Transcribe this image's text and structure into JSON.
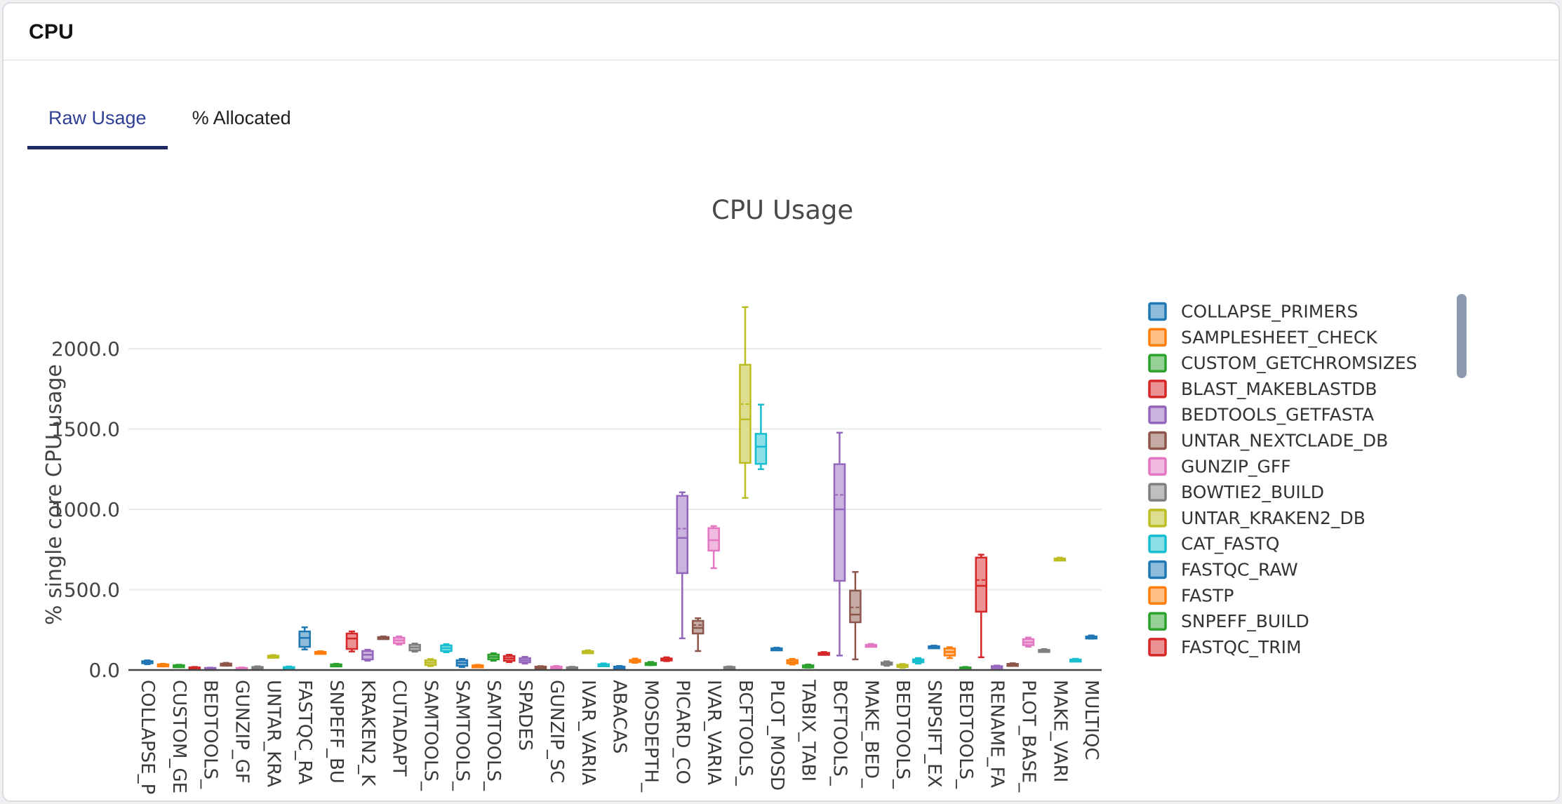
{
  "header": {
    "title": "CPU"
  },
  "tabs": [
    {
      "label": "Raw Usage",
      "active": true
    },
    {
      "label": "% Allocated",
      "active": false
    }
  ],
  "colors": {
    "active_tab_text": "#2e3f94",
    "tab_underline": "#1f2a66",
    "axis_text": "#444444",
    "axis_line": "#444444",
    "grid": "#ebebeb",
    "scrollbar": "#8d99ae",
    "card_border": "#d9dce1"
  },
  "chart_data": {
    "type": "box",
    "title": "CPU Usage",
    "xlabel": "",
    "ylabel": "% single core CPU usage",
    "ytick_values": [
      0,
      500,
      1000,
      1500,
      2000
    ],
    "ytick_labels": [
      "0.0",
      "500.0",
      "1000.0",
      "1500.0",
      "2000.0"
    ],
    "ylim": [
      0,
      2320
    ],
    "grid": true,
    "legend_position": "right",
    "legend_scrollable": true,
    "palette": [
      "#1f77b4",
      "#ff7f0e",
      "#2ca02c",
      "#d62728",
      "#9467bd",
      "#8c564b",
      "#e377c2",
      "#7f7f7f",
      "#bcbd22",
      "#17becf"
    ],
    "legend": [
      {
        "label": "COLLAPSE_PRIMERS",
        "color_index": 0
      },
      {
        "label": "SAMPLESHEET_CHECK",
        "color_index": 1
      },
      {
        "label": "CUSTOM_GETCHROMSIZES",
        "color_index": 2
      },
      {
        "label": "BLAST_MAKEBLASTDB",
        "color_index": 3
      },
      {
        "label": "BEDTOOLS_GETFASTA",
        "color_index": 4
      },
      {
        "label": "UNTAR_NEXTCLADE_DB",
        "color_index": 5
      },
      {
        "label": "GUNZIP_GFF",
        "color_index": 6
      },
      {
        "label": "BOWTIE2_BUILD",
        "color_index": 7
      },
      {
        "label": "UNTAR_KRAKEN2_DB",
        "color_index": 8
      },
      {
        "label": "CAT_FASTQ",
        "color_index": 9
      },
      {
        "label": "FASTQC_RAW",
        "color_index": 0
      },
      {
        "label": "FASTP",
        "color_index": 1
      },
      {
        "label": "SNPEFF_BUILD",
        "color_index": 2
      },
      {
        "label": "FASTQC_TRIM",
        "color_index": 3
      }
    ],
    "xtick_labels": [
      "COLLAPSE_P",
      "CUSTOM_GE",
      "BEDTOOLS_",
      "GUNZIP_GF",
      "UNTAR_KRA",
      "FASTQC_RA",
      "SNPEFF_BU",
      "KRAKEN2_K",
      "CUTADAPT",
      "SAMTOOLS_",
      "SAMTOOLS_",
      "SAMTOOLS_",
      "SPADES",
      "GUNZIP_SC",
      "IVAR_VARIA",
      "ABACAS",
      "MOSDEPTH_",
      "PICARD_CO",
      "IVAR_VARIA",
      "BCFTOOLS_",
      "PLOT_MOSD",
      "TABIX_TABI",
      "BCFTOOLS_",
      "MAKE_BED_",
      "BEDTOOLS_",
      "SNPSIFT_EX",
      "BEDTOOLS_",
      "RENAME_FA",
      "PLOT_BASE_",
      "MAKE_VARI",
      "MULTIQC"
    ],
    "boxes": [
      {
        "i": 1,
        "color_index": 0,
        "lo": 36,
        "q1": 42,
        "med": 48,
        "q3": 55,
        "hi": 60
      },
      {
        "i": 2,
        "color_index": 1,
        "lo": 24,
        "q1": 28,
        "med": 31,
        "q3": 35,
        "hi": 39
      },
      {
        "i": 3,
        "color_index": 2,
        "lo": 19,
        "q1": 23,
        "med": 26,
        "q3": 30,
        "hi": 33
      },
      {
        "i": 4,
        "color_index": 3,
        "lo": 7,
        "q1": 10,
        "med": 13,
        "q3": 16,
        "hi": 19
      },
      {
        "i": 5,
        "color_index": 4,
        "lo": 5,
        "q1": 8,
        "med": 10,
        "q3": 13,
        "hi": 15
      },
      {
        "i": 6,
        "color_index": 5,
        "lo": 27,
        "q1": 32,
        "med": 36,
        "q3": 40,
        "hi": 44
      },
      {
        "i": 7,
        "color_index": 6,
        "lo": 6,
        "q1": 8,
        "med": 11,
        "q3": 13,
        "hi": 16
      },
      {
        "i": 8,
        "color_index": 7,
        "lo": 9,
        "q1": 13,
        "med": 16,
        "q3": 19,
        "hi": 23
      },
      {
        "i": 9,
        "color_index": 8,
        "lo": 79,
        "q1": 83,
        "med": 86,
        "q3": 89,
        "hi": 93
      },
      {
        "i": 10,
        "color_index": 9,
        "lo": 8,
        "q1": 12,
        "med": 15,
        "q3": 18,
        "hi": 22
      },
      {
        "i": 11,
        "color_index": 0,
        "lo": 128,
        "q1": 144,
        "med": 200,
        "q3": 240,
        "hi": 266
      },
      {
        "i": 12,
        "color_index": 1,
        "lo": 103,
        "q1": 107,
        "med": 110,
        "q3": 113,
        "hi": 117
      },
      {
        "i": 13,
        "color_index": 2,
        "lo": 25,
        "q1": 29,
        "med": 32,
        "q3": 35,
        "hi": 39
      },
      {
        "i": 14,
        "color_index": 3,
        "lo": 115,
        "q1": 131,
        "med": 196,
        "q3": 227,
        "hi": 240
      },
      {
        "i": 15,
        "color_index": 4,
        "lo": 58,
        "q1": 66,
        "med": 95,
        "q3": 118,
        "hi": 126
      },
      {
        "i": 16,
        "color_index": 5,
        "lo": 195,
        "q1": 199,
        "med": 202,
        "q3": 205,
        "hi": 209
      },
      {
        "i": 17,
        "color_index": 6,
        "lo": 158,
        "q1": 166,
        "med": 184,
        "q3": 201,
        "hi": 209
      },
      {
        "i": 18,
        "color_index": 7,
        "lo": 114,
        "q1": 122,
        "med": 140,
        "q3": 157,
        "hi": 165
      },
      {
        "i": 19,
        "color_index": 8,
        "lo": 24,
        "q1": 31,
        "med": 46,
        "q3": 61,
        "hi": 68
      },
      {
        "i": 20,
        "color_index": 9,
        "lo": 110,
        "q1": 118,
        "med": 136,
        "q3": 153,
        "hi": 161
      },
      {
        "i": 21,
        "color_index": 0,
        "lo": 18,
        "q1": 26,
        "med": 44,
        "q3": 61,
        "hi": 69
      },
      {
        "i": 22,
        "color_index": 1,
        "lo": 21,
        "q1": 24,
        "med": 26,
        "q3": 29,
        "hi": 32
      },
      {
        "i": 23,
        "color_index": 2,
        "lo": 58,
        "q1": 66,
        "med": 81,
        "q3": 96,
        "hi": 104
      },
      {
        "i": 24,
        "color_index": 3,
        "lo": 49,
        "q1": 57,
        "med": 72,
        "q3": 87,
        "hi": 95
      },
      {
        "i": 25,
        "color_index": 4,
        "lo": 40,
        "q1": 48,
        "med": 61,
        "q3": 74,
        "hi": 82
      },
      {
        "i": 26,
        "color_index": 5,
        "lo": 13,
        "q1": 16,
        "med": 18,
        "q3": 21,
        "hi": 24
      },
      {
        "i": 27,
        "color_index": 6,
        "lo": 11,
        "q1": 15,
        "med": 18,
        "q3": 21,
        "hi": 25
      },
      {
        "i": 28,
        "color_index": 7,
        "lo": 9,
        "q1": 12,
        "med": 14,
        "q3": 17,
        "hi": 20
      },
      {
        "i": 29,
        "color_index": 8,
        "lo": 106,
        "q1": 111,
        "med": 114,
        "q3": 117,
        "hi": 122
      },
      {
        "i": 30,
        "color_index": 9,
        "lo": 23,
        "q1": 28,
        "med": 32,
        "q3": 36,
        "hi": 41
      },
      {
        "i": 31,
        "color_index": 0,
        "lo": 11,
        "q1": 15,
        "med": 18,
        "q3": 21,
        "hi": 25
      },
      {
        "i": 32,
        "color_index": 1,
        "lo": 45,
        "q1": 53,
        "med": 58,
        "q3": 63,
        "hi": 71
      },
      {
        "i": 33,
        "color_index": 2,
        "lo": 30,
        "q1": 36,
        "med": 40,
        "q3": 44,
        "hi": 50
      },
      {
        "i": 34,
        "color_index": 3,
        "lo": 55,
        "q1": 62,
        "med": 67,
        "q3": 72,
        "hi": 79
      },
      {
        "i": 35,
        "color_index": 4,
        "lo": 197,
        "q1": 603,
        "med": 822,
        "q3": 1084,
        "hi": 1106,
        "mean": 880
      },
      {
        "i": 36,
        "color_index": 5,
        "lo": 118,
        "q1": 227,
        "med": 262,
        "q3": 306,
        "hi": 322,
        "mean": 280
      },
      {
        "i": 37,
        "color_index": 6,
        "lo": 634,
        "q1": 743,
        "med": 808,
        "q3": 883,
        "hi": 896
      },
      {
        "i": 38,
        "color_index": 7,
        "lo": 12,
        "q1": 15,
        "med": 17,
        "q3": 19,
        "hi": 22
      },
      {
        "i": 39,
        "color_index": 8,
        "lo": 1071,
        "q1": 1289,
        "med": 1560,
        "q3": 1900,
        "hi": 2259,
        "mean": 1655
      },
      {
        "i": 40,
        "color_index": 9,
        "lo": 1250,
        "q1": 1283,
        "med": 1390,
        "q3": 1470,
        "hi": 1652
      },
      {
        "i": 41,
        "color_index": 0,
        "lo": 126,
        "q1": 130,
        "med": 132,
        "q3": 135,
        "hi": 139
      },
      {
        "i": 42,
        "color_index": 1,
        "lo": 34,
        "q1": 41,
        "med": 50,
        "q3": 62,
        "hi": 69
      },
      {
        "i": 43,
        "color_index": 2,
        "lo": 14,
        "q1": 18,
        "med": 23,
        "q3": 29,
        "hi": 34
      },
      {
        "i": 44,
        "color_index": 3,
        "lo": 96,
        "q1": 101,
        "med": 104,
        "q3": 107,
        "hi": 112
      },
      {
        "i": 45,
        "color_index": 4,
        "lo": 90,
        "q1": 555,
        "med": 1000,
        "q3": 1281,
        "hi": 1477,
        "mean": 1090
      },
      {
        "i": 46,
        "color_index": 5,
        "lo": 66,
        "q1": 297,
        "med": 345,
        "q3": 494,
        "hi": 610,
        "mean": 390
      },
      {
        "i": 47,
        "color_index": 6,
        "lo": 146,
        "q1": 151,
        "med": 154,
        "q3": 157,
        "hi": 162
      },
      {
        "i": 48,
        "color_index": 7,
        "lo": 26,
        "q1": 33,
        "med": 40,
        "q3": 47,
        "hi": 54
      },
      {
        "i": 49,
        "color_index": 8,
        "lo": 15,
        "q1": 20,
        "med": 26,
        "q3": 32,
        "hi": 37
      },
      {
        "i": 50,
        "color_index": 9,
        "lo": 40,
        "q1": 48,
        "med": 57,
        "q3": 66,
        "hi": 74
      },
      {
        "i": 51,
        "color_index": 0,
        "lo": 138,
        "q1": 142,
        "med": 145,
        "q3": 148,
        "hi": 152
      },
      {
        "i": 52,
        "color_index": 1,
        "lo": 74,
        "q1": 90,
        "med": 112,
        "q3": 134,
        "hi": 142
      },
      {
        "i": 53,
        "color_index": 2,
        "lo": 9,
        "q1": 12,
        "med": 14,
        "q3": 16,
        "hi": 19
      },
      {
        "i": 54,
        "color_index": 3,
        "lo": 79,
        "q1": 363,
        "med": 524,
        "q3": 700,
        "hi": 718,
        "mean": 560
      },
      {
        "i": 55,
        "color_index": 4,
        "lo": 16,
        "q1": 20,
        "med": 22,
        "q3": 24,
        "hi": 28
      },
      {
        "i": 56,
        "color_index": 5,
        "lo": 28,
        "q1": 32,
        "med": 35,
        "q3": 38,
        "hi": 42
      },
      {
        "i": 57,
        "color_index": 6,
        "lo": 145,
        "q1": 155,
        "med": 172,
        "q3": 192,
        "hi": 202
      },
      {
        "i": 58,
        "color_index": 7,
        "lo": 114,
        "q1": 119,
        "med": 122,
        "q3": 125,
        "hi": 130
      },
      {
        "i": 59,
        "color_index": 8,
        "lo": 683,
        "q1": 688,
        "med": 691,
        "q3": 694,
        "hi": 699
      },
      {
        "i": 60,
        "color_index": 9,
        "lo": 54,
        "q1": 59,
        "med": 62,
        "q3": 65,
        "hi": 70
      },
      {
        "i": 61,
        "color_index": 0,
        "lo": 195,
        "q1": 201,
        "med": 205,
        "q3": 209,
        "hi": 215
      }
    ]
  }
}
